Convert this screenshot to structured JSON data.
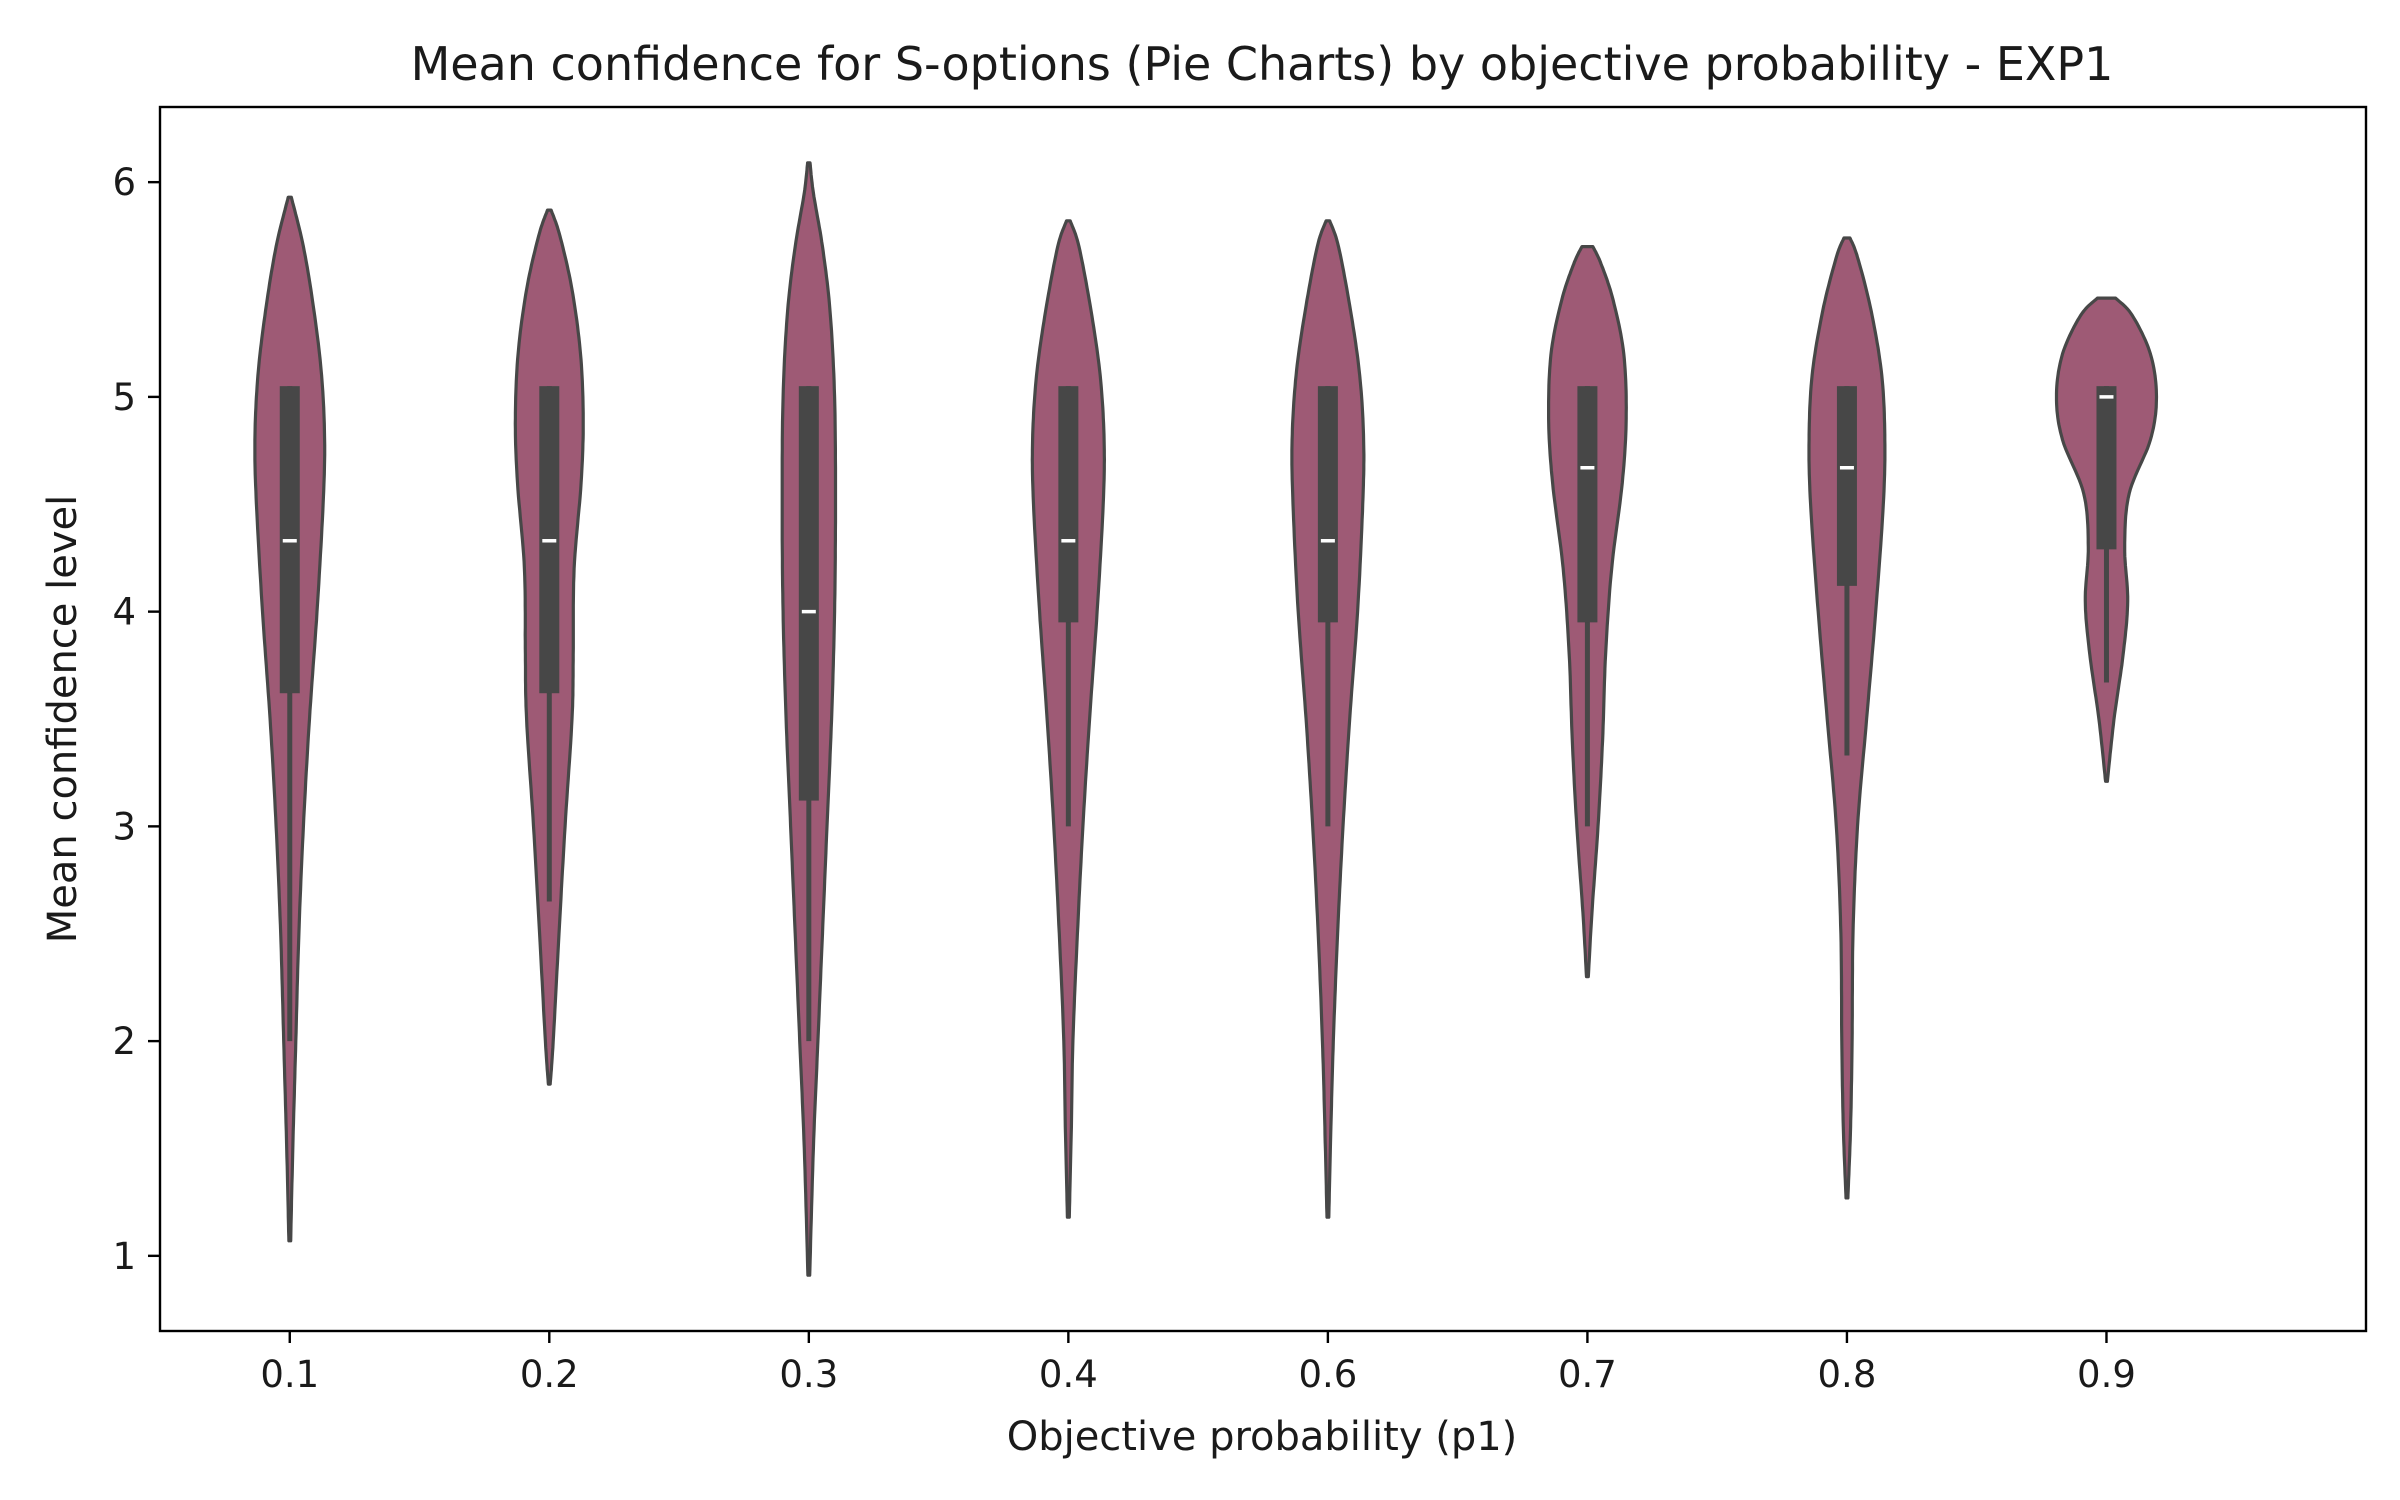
{
  "chart_data": {
    "type": "violin",
    "title": "Mean confidence for S-options (Pie Charts) by objective probability - EXP1",
    "xlabel": "Objective probability (p1)",
    "ylabel": "Mean confidence level",
    "ylim": [
      0.65,
      6.35
    ],
    "yticks": [
      1,
      2,
      3,
      4,
      5,
      6
    ],
    "categories": [
      "0.1",
      "0.2",
      "0.3",
      "0.4",
      "0.6",
      "0.7",
      "0.8",
      "0.9"
    ],
    "grid": false,
    "legend": "none",
    "colors": {
      "violin_fill": "#9e5a75",
      "outline": "#474747",
      "median": "#ffffff"
    },
    "series": [
      {
        "category": "0.1",
        "min": 1.07,
        "max": 5.93,
        "q1": 3.62,
        "median": 4.33,
        "q3": 5.05,
        "whisker_low": 2.0,
        "whisker_high": 5.05,
        "density": [
          [
            1.07,
            0.3
          ],
          [
            1.5,
            1.0
          ],
          [
            2.0,
            2.0
          ],
          [
            2.5,
            3.0
          ],
          [
            3.0,
            4.5
          ],
          [
            3.5,
            6.5
          ],
          [
            4.0,
            9.0
          ],
          [
            4.5,
            11.0
          ],
          [
            4.8,
            11.5
          ],
          [
            5.1,
            10.5
          ],
          [
            5.4,
            8.0
          ],
          [
            5.7,
            4.5
          ],
          [
            5.93,
            0.5
          ]
        ]
      },
      {
        "category": "0.2",
        "min": 1.8,
        "max": 5.87,
        "q1": 3.62,
        "median": 4.33,
        "q3": 5.05,
        "whisker_low": 2.65,
        "whisker_high": 5.05,
        "density": [
          [
            1.8,
            0.3
          ],
          [
            2.0,
            1.3
          ],
          [
            2.5,
            3.2
          ],
          [
            3.0,
            5.2
          ],
          [
            3.5,
            7.5
          ],
          [
            3.8,
            7.9
          ],
          [
            4.2,
            8.2
          ],
          [
            4.6,
            10.5
          ],
          [
            4.9,
            11.2
          ],
          [
            5.2,
            10.3
          ],
          [
            5.5,
            7.5
          ],
          [
            5.75,
            3.5
          ],
          [
            5.87,
            0.6
          ]
        ]
      },
      {
        "category": "0.3",
        "min": 0.91,
        "max": 6.09,
        "q1": 3.12,
        "median": 4.0,
        "q3": 5.05,
        "whisker_low": 2.0,
        "whisker_high": 5.05,
        "density": [
          [
            0.91,
            0.3
          ],
          [
            1.5,
            1.5
          ],
          [
            2.0,
            3.0
          ],
          [
            2.5,
            4.5
          ],
          [
            3.0,
            6.0
          ],
          [
            3.5,
            7.5
          ],
          [
            4.0,
            8.5
          ],
          [
            4.5,
            8.8
          ],
          [
            5.0,
            8.5
          ],
          [
            5.4,
            7.0
          ],
          [
            5.7,
            4.5
          ],
          [
            5.95,
            1.5
          ],
          [
            6.09,
            0.4
          ]
        ]
      },
      {
        "category": "0.4",
        "min": 1.18,
        "max": 5.82,
        "q1": 3.95,
        "median": 4.33,
        "q3": 5.05,
        "whisker_low": 3.0,
        "whisker_high": 5.05,
        "density": [
          [
            1.18,
            0.3
          ],
          [
            1.6,
            1.0
          ],
          [
            2.0,
            1.5
          ],
          [
            2.5,
            3.0
          ],
          [
            3.0,
            4.8
          ],
          [
            3.5,
            7.0
          ],
          [
            4.0,
            9.5
          ],
          [
            4.5,
            11.5
          ],
          [
            4.8,
            11.8
          ],
          [
            5.1,
            10.5
          ],
          [
            5.4,
            7.5
          ],
          [
            5.7,
            3.5
          ],
          [
            5.82,
            0.6
          ]
        ]
      },
      {
        "category": "0.6",
        "min": 1.18,
        "max": 5.82,
        "q1": 3.95,
        "median": 4.33,
        "q3": 5.05,
        "whisker_low": 3.0,
        "whisker_high": 5.05,
        "density": [
          [
            1.18,
            0.3
          ],
          [
            1.6,
            1.0
          ],
          [
            2.0,
            1.8
          ],
          [
            2.5,
            3.2
          ],
          [
            3.0,
            5.0
          ],
          [
            3.5,
            7.2
          ],
          [
            4.0,
            9.8
          ],
          [
            4.5,
            11.5
          ],
          [
            4.8,
            11.8
          ],
          [
            5.1,
            10.5
          ],
          [
            5.4,
            7.5
          ],
          [
            5.7,
            3.5
          ],
          [
            5.82,
            0.6
          ]
        ]
      },
      {
        "category": "0.7",
        "min": 2.3,
        "max": 5.7,
        "q1": 3.95,
        "median": 4.67,
        "q3": 5.05,
        "whisker_low": 3.0,
        "whisker_high": 5.05,
        "density": [
          [
            2.3,
            0.3
          ],
          [
            2.6,
            1.5
          ],
          [
            3.0,
            3.5
          ],
          [
            3.4,
            5.0
          ],
          [
            3.8,
            6.0
          ],
          [
            4.2,
            8.0
          ],
          [
            4.6,
            11.5
          ],
          [
            4.9,
            12.8
          ],
          [
            5.2,
            12.0
          ],
          [
            5.45,
            8.5
          ],
          [
            5.62,
            4.5
          ],
          [
            5.7,
            1.8
          ]
        ]
      },
      {
        "category": "0.8",
        "min": 1.27,
        "max": 5.74,
        "q1": 4.12,
        "median": 4.67,
        "q3": 5.05,
        "whisker_low": 3.33,
        "whisker_high": 5.05,
        "density": [
          [
            1.27,
            0.3
          ],
          [
            1.6,
            1.2
          ],
          [
            2.0,
            1.7
          ],
          [
            2.5,
            2.0
          ],
          [
            3.0,
            3.5
          ],
          [
            3.5,
            6.5
          ],
          [
            4.0,
            9.5
          ],
          [
            4.5,
            12.0
          ],
          [
            4.8,
            12.5
          ],
          [
            5.1,
            11.5
          ],
          [
            5.4,
            8.0
          ],
          [
            5.65,
            3.5
          ],
          [
            5.74,
            1.0
          ]
        ]
      },
      {
        "category": "0.9",
        "min": 3.21,
        "max": 5.46,
        "q1": 4.29,
        "median": 5.0,
        "q3": 5.05,
        "whisker_low": 3.67,
        "whisker_high": 5.05,
        "density": [
          [
            3.21,
            0.3
          ],
          [
            3.5,
            2.5
          ],
          [
            3.8,
            5.5
          ],
          [
            4.05,
            7.0
          ],
          [
            4.3,
            6.0
          ],
          [
            4.55,
            7.5
          ],
          [
            4.8,
            14.5
          ],
          [
            5.0,
            16.5
          ],
          [
            5.2,
            14.5
          ],
          [
            5.38,
            8.5
          ],
          [
            5.46,
            3.0
          ]
        ]
      }
    ]
  }
}
